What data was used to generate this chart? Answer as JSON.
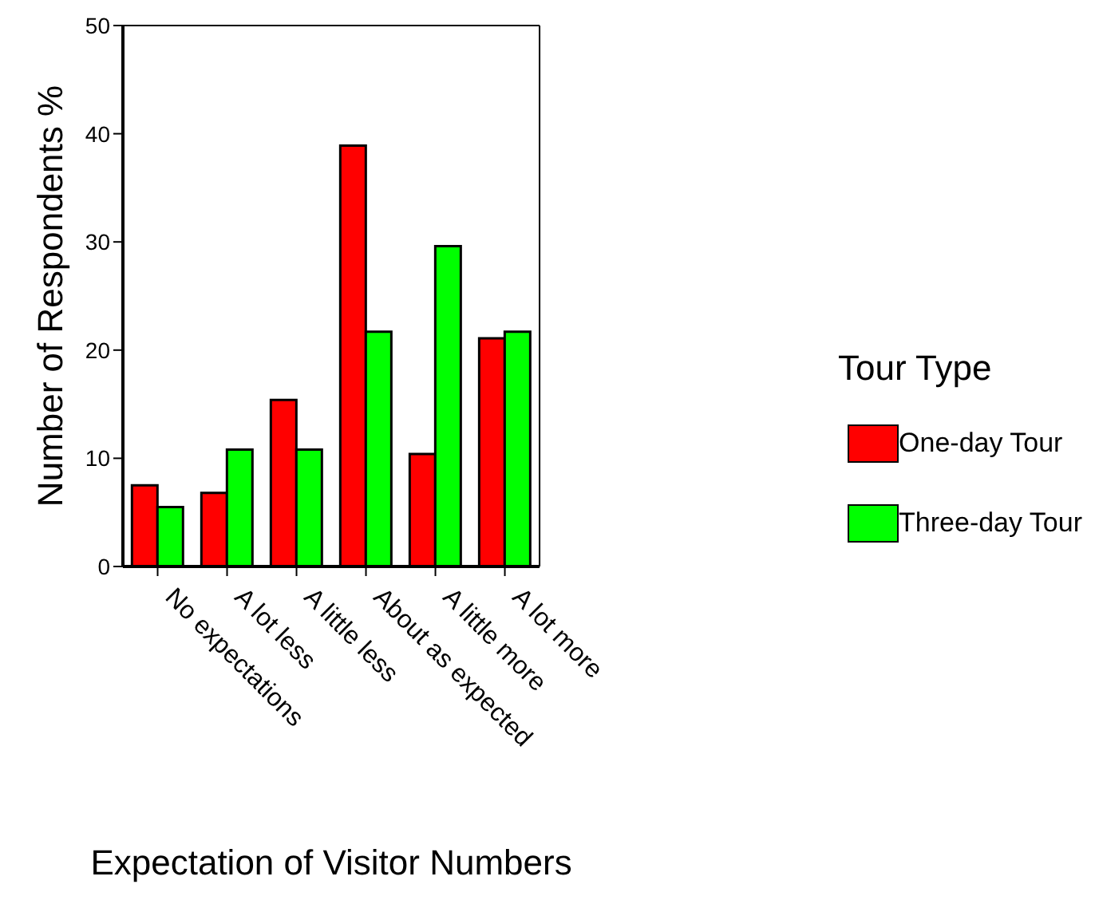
{
  "chart_data": {
    "type": "bar",
    "xlabel": "Expectation of Visitor Numbers",
    "ylabel": "Number of Respondents %",
    "legend_title": "Tour Type",
    "categories": [
      "No expectations",
      "A lot less",
      "A little less",
      "About as expected",
      "A little more",
      "A lot more"
    ],
    "series": [
      {
        "name": "One-day Tour",
        "color": "#ff0000",
        "values": [
          7.5,
          6.8,
          15.4,
          38.9,
          10.4,
          21.1
        ]
      },
      {
        "name": "Three-day Tour",
        "color": "#00ff00",
        "values": [
          5.5,
          10.8,
          10.8,
          21.7,
          29.6,
          21.7
        ]
      }
    ],
    "ylim": [
      0,
      50
    ],
    "yticks": [
      0,
      10,
      20,
      30,
      40,
      50
    ],
    "grid": false,
    "legend": "right"
  }
}
